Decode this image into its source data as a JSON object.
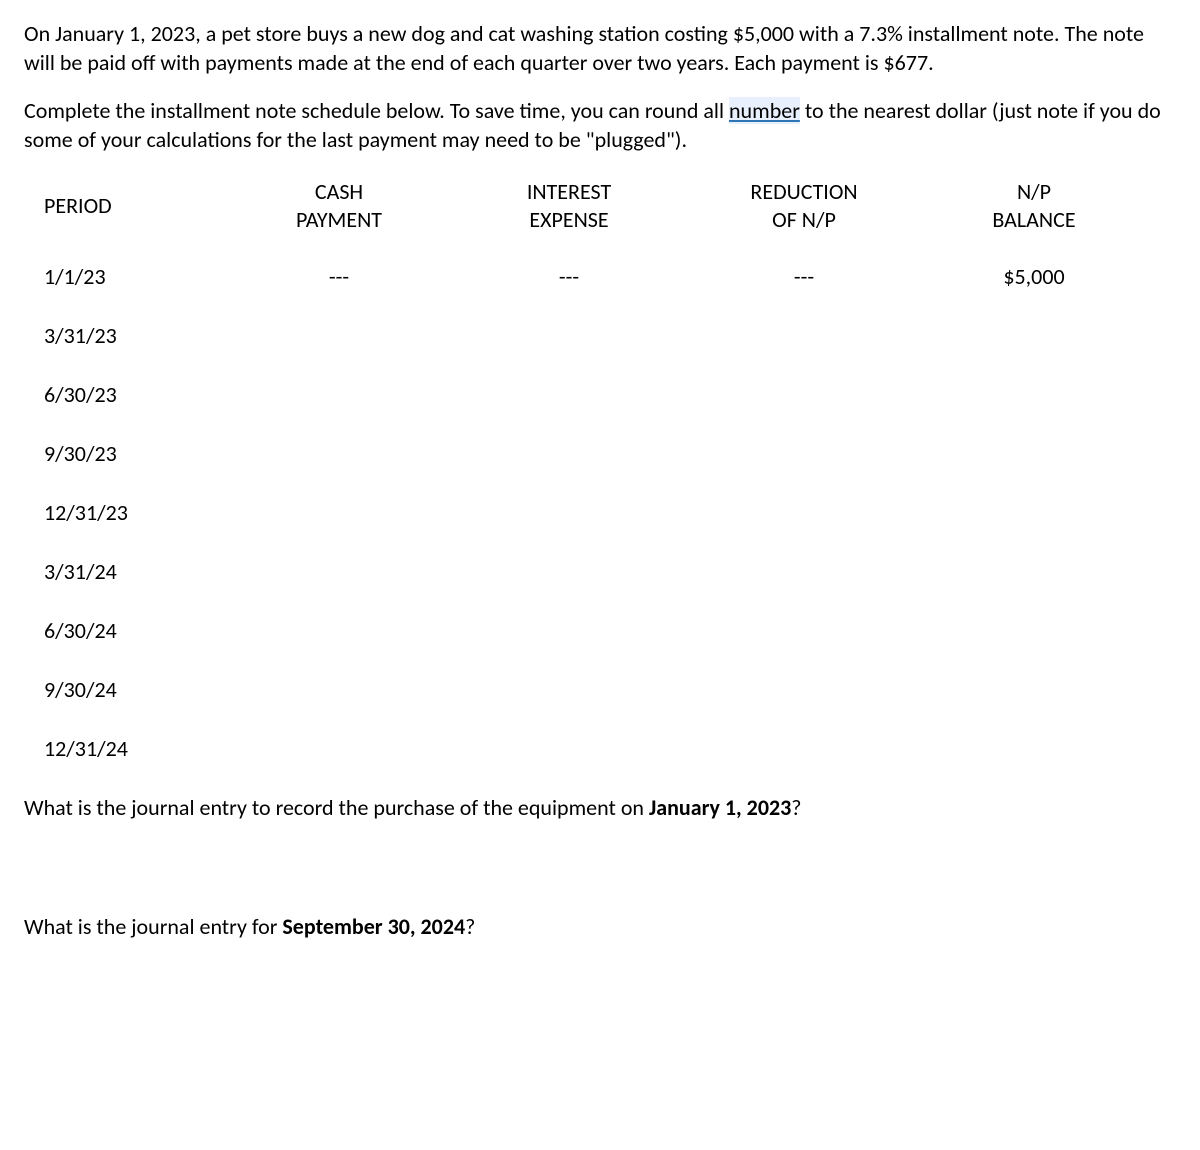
{
  "paragraphs": {
    "p1": "On January 1, 2023, a pet store buys a new dog and cat washing station costing $5,000 with a 7.3% installment note. The note will be paid off with payments made at the end of each quarter over two years. Each payment is $677.",
    "p2_part1": "Complete the installment note schedule below. To save time, you can round all ",
    "p2_underlined": "number",
    "p2_part2": " to the nearest dollar (just note if you do some of your calculations for the last payment may need to be \"plugged\"). "
  },
  "table": {
    "headers": {
      "period": "PERIOD",
      "cash_line1": "CASH",
      "cash_line2": "PAYMENT",
      "interest_line1": "INTEREST",
      "interest_line2": "EXPENSE",
      "reduction_line1": "REDUCTION",
      "reduction_line2": "OF N/P",
      "balance_line1": "N/P",
      "balance_line2": "BALANCE"
    },
    "rows": [
      {
        "period": "1/1/23",
        "cash": "---",
        "interest": "---",
        "reduction": "---",
        "balance": "$5,000"
      },
      {
        "period": "3/31/23",
        "cash": "",
        "interest": "",
        "reduction": "",
        "balance": ""
      },
      {
        "period": "6/30/23",
        "cash": "",
        "interest": "",
        "reduction": "",
        "balance": ""
      },
      {
        "period": "9/30/23",
        "cash": "",
        "interest": "",
        "reduction": "",
        "balance": ""
      },
      {
        "period": "12/31/23",
        "cash": "",
        "interest": "",
        "reduction": "",
        "balance": ""
      },
      {
        "period": "3/31/24",
        "cash": "",
        "interest": "",
        "reduction": "",
        "balance": ""
      },
      {
        "period": "6/30/24",
        "cash": "",
        "interest": "",
        "reduction": "",
        "balance": ""
      },
      {
        "period": "9/30/24",
        "cash": "",
        "interest": "",
        "reduction": "",
        "balance": ""
      },
      {
        "period": "12/31/24",
        "cash": "",
        "interest": "",
        "reduction": "",
        "balance": ""
      }
    ]
  },
  "questions": {
    "q1_part1": "What is the journal entry to record the purchase of the equipment on ",
    "q1_bold": "January 1, 2023",
    "q1_part2": "?",
    "q2_part1": "What is the journal entry for ",
    "q2_bold": "September 30, 2024",
    "q2_part2": "?"
  },
  "styling": {
    "font_family": "Calibri, Arial, sans-serif",
    "body_font_size": 22,
    "text_color": "#000000",
    "background_color": "#ffffff",
    "underline_color": "#2e75b6",
    "underline_bg": "#e8f0fe"
  }
}
